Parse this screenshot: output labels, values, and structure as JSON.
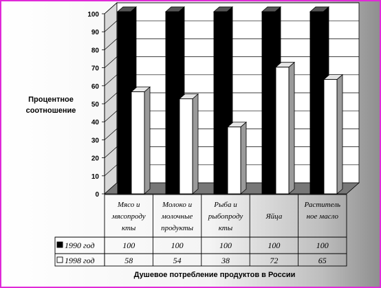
{
  "chart_data": {
    "type": "bar",
    "ylabel_lines": [
      "Процентное",
      "соотношение"
    ],
    "xlabel": "Душевое потребление продуктов в России",
    "ylim": [
      0,
      100
    ],
    "yticks": [
      0,
      10,
      20,
      30,
      40,
      50,
      60,
      70,
      80,
      90,
      100
    ],
    "grid": true,
    "categories": [
      [
        "Мясо и",
        "мясопроду",
        "кты"
      ],
      [
        "Молоко и",
        "молочные",
        "продукты"
      ],
      [
        "Рыба и",
        "рыбопроду",
        "кты"
      ],
      [
        "Яйца"
      ],
      [
        "Раститель",
        "ное масло"
      ]
    ],
    "series": [
      {
        "name": "1990 год",
        "values": [
          100,
          100,
          100,
          100,
          100
        ],
        "color": "#000000"
      },
      {
        "name": "1998 год",
        "values": [
          58,
          54,
          38,
          72,
          65
        ],
        "color": "#ffffff"
      }
    ]
  },
  "colors": {
    "frame": "#e02ad8",
    "floor": "#777777",
    "wall": "#ffffff"
  }
}
